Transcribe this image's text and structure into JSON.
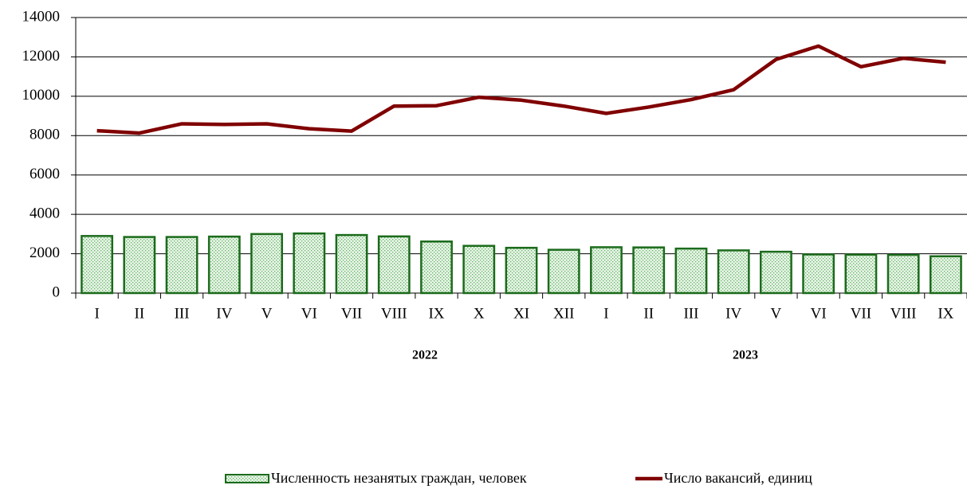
{
  "chart_data": {
    "type": "bar_line",
    "categories": [
      "I",
      "II",
      "III",
      "IV",
      "V",
      "VI",
      "VII",
      "VIII",
      "IX",
      "X",
      "XI",
      "XII",
      "I",
      "II",
      "III",
      "IV",
      "V",
      "VI",
      "VII",
      "VIII",
      "IX"
    ],
    "group_labels": [
      "2022",
      "2023"
    ],
    "series": [
      {
        "name": "Численность незанятых граждан, человек",
        "type": "bar",
        "color": "#1b6b1b",
        "values": [
          2900,
          2850,
          2850,
          2870,
          3000,
          3030,
          2950,
          2880,
          2620,
          2400,
          2300,
          2200,
          2330,
          2320,
          2260,
          2170,
          2100,
          1960,
          1950,
          1940,
          1870
        ]
      },
      {
        "name": "Число вакансий, единиц",
        "type": "line",
        "color": "#800000",
        "values": [
          8250,
          8130,
          8600,
          8570,
          8600,
          8350,
          8230,
          9500,
          9520,
          9950,
          9800,
          9500,
          9130,
          9450,
          9830,
          10330,
          11870,
          12550,
          11500,
          11930,
          11730
        ]
      }
    ],
    "ylim": [
      0,
      14000
    ],
    "yticks": [
      0,
      2000,
      4000,
      6000,
      8000,
      10000,
      12000,
      14000
    ],
    "grid": true
  }
}
